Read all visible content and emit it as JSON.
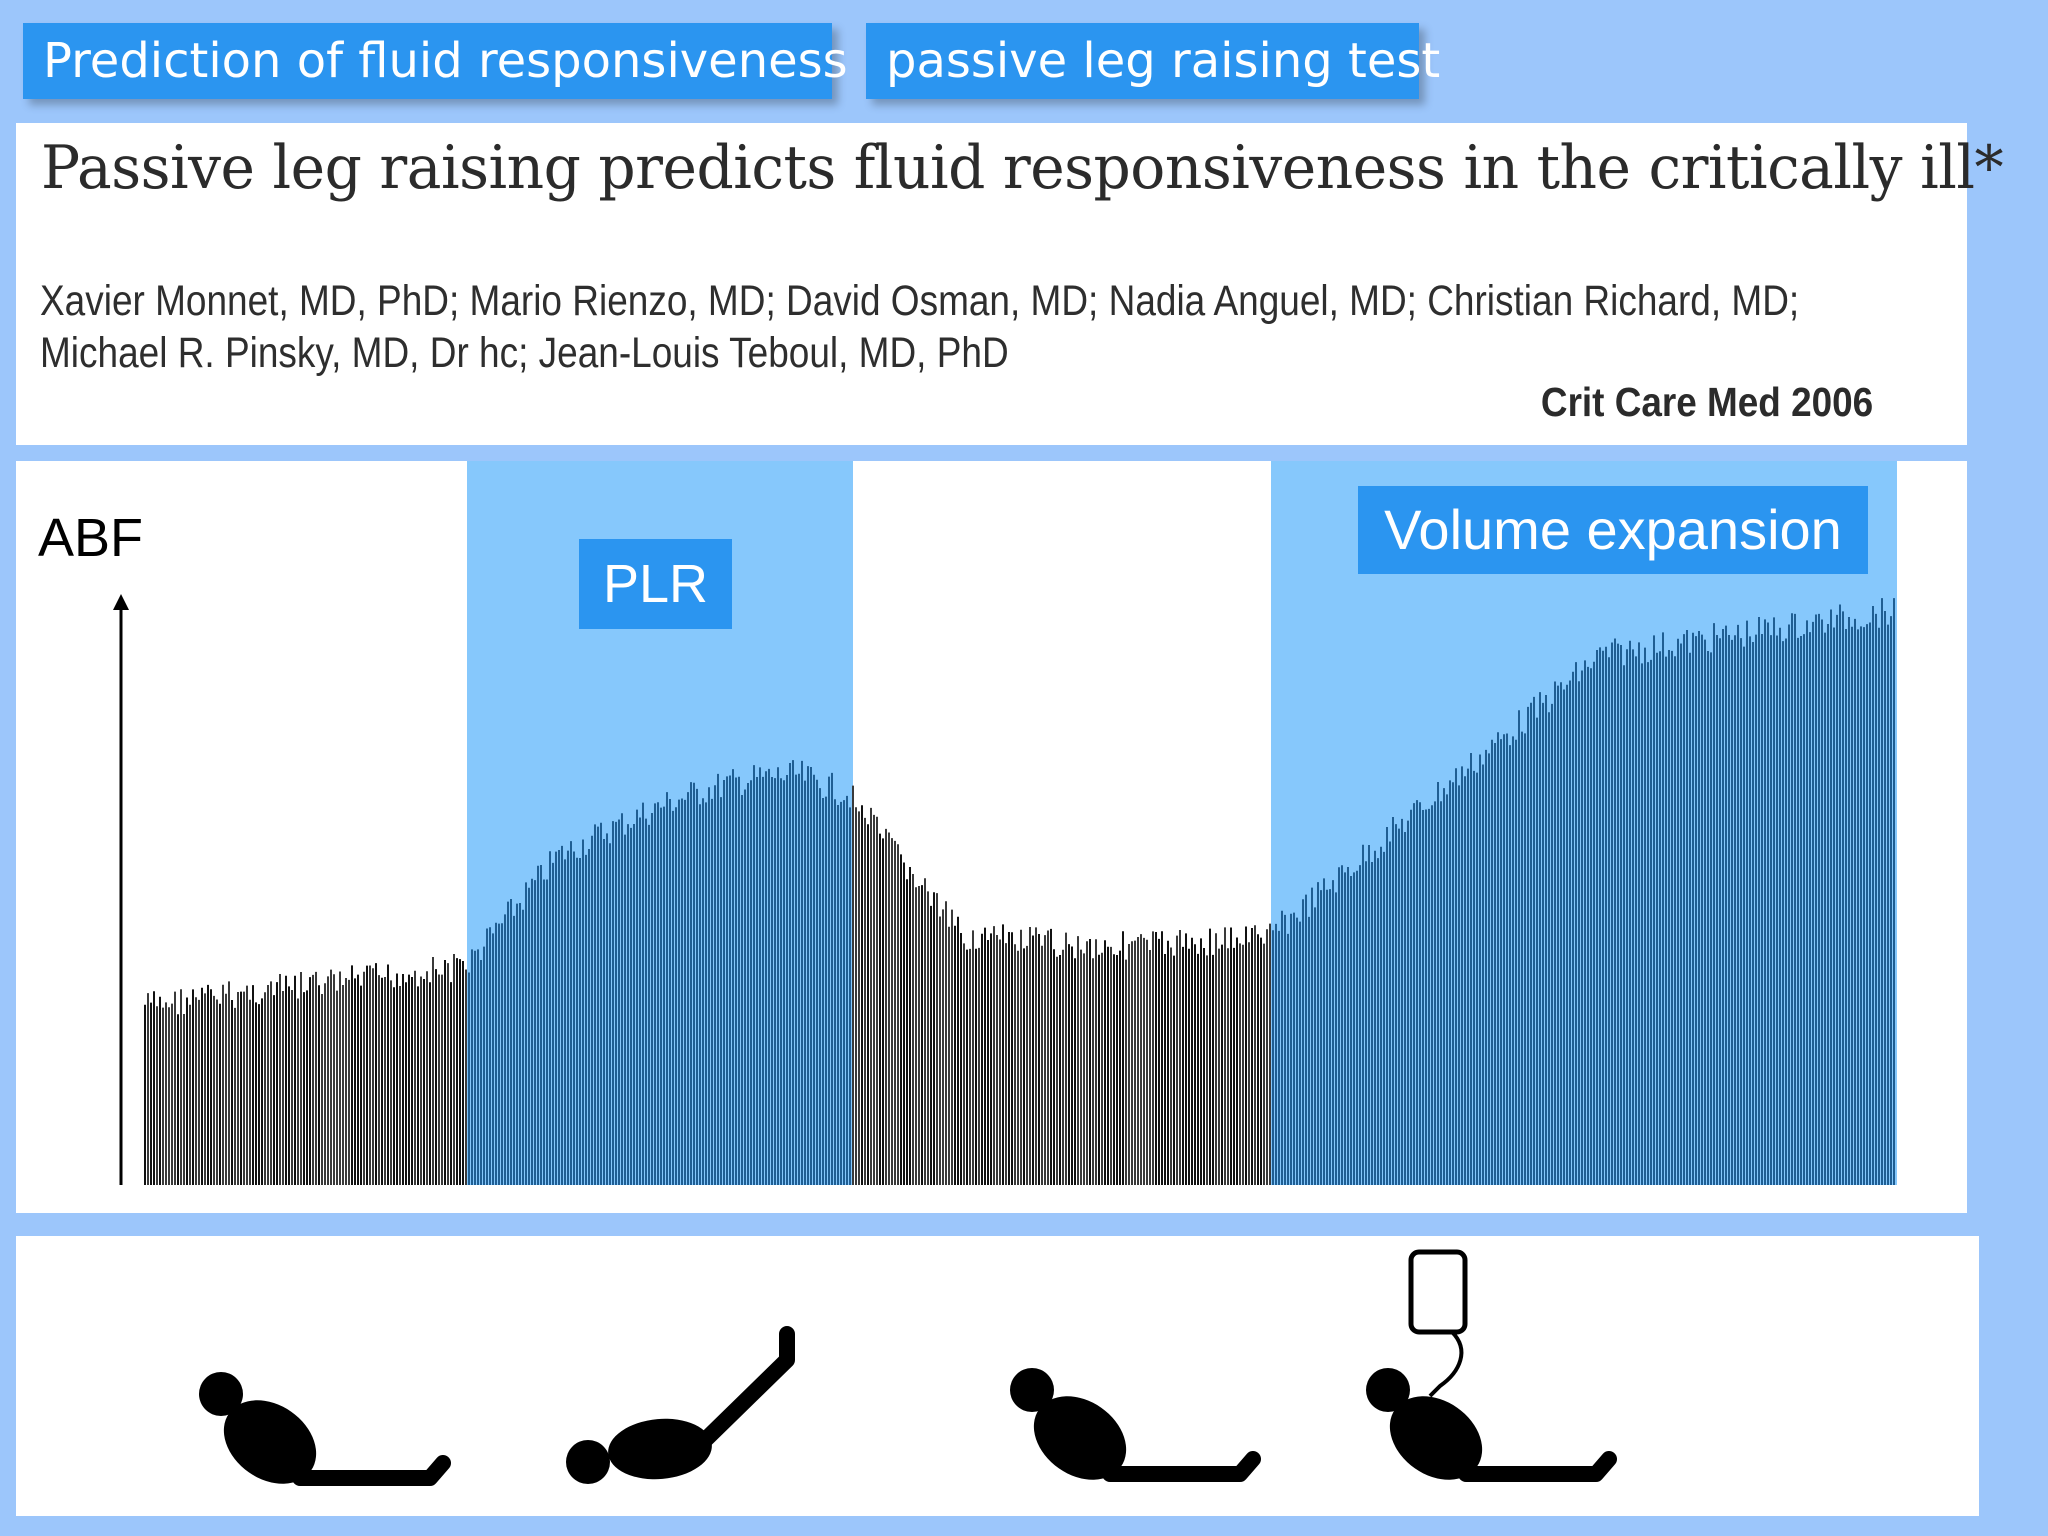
{
  "header": {
    "tag_left": "Prediction of fluid responsiveness",
    "tag_right": "passive leg raising test"
  },
  "paper": {
    "title": "Passive leg raising predicts fluid responsiveness in the critically ill*",
    "authors_line1": "Xavier Monnet, MD, PhD; Mario Rienzo, MD; David Osman, MD; Nadia Anguel, MD; Christian Richard, MD;",
    "authors_line2": "Michael R. Pinsky, MD, Dr hc; Jean-Louis Teboul, MD, PhD",
    "journal": "Crit Care Med 2006"
  },
  "chart": {
    "y_label": "ABF",
    "phase_plr": "PLR",
    "phase_volume_expansion": "Volume expansion"
  },
  "icons": [
    "patient-supine-icon",
    "patient-legs-raised-icon",
    "patient-supine-icon",
    "patient-infusion-icon"
  ],
  "colors": {
    "background": "#9cc6fb",
    "label_box": "#2b95f0",
    "phase_highlight": "#86c8fc",
    "trace_baseline": "#111111",
    "trace_highlight": "#1f5e93"
  }
}
